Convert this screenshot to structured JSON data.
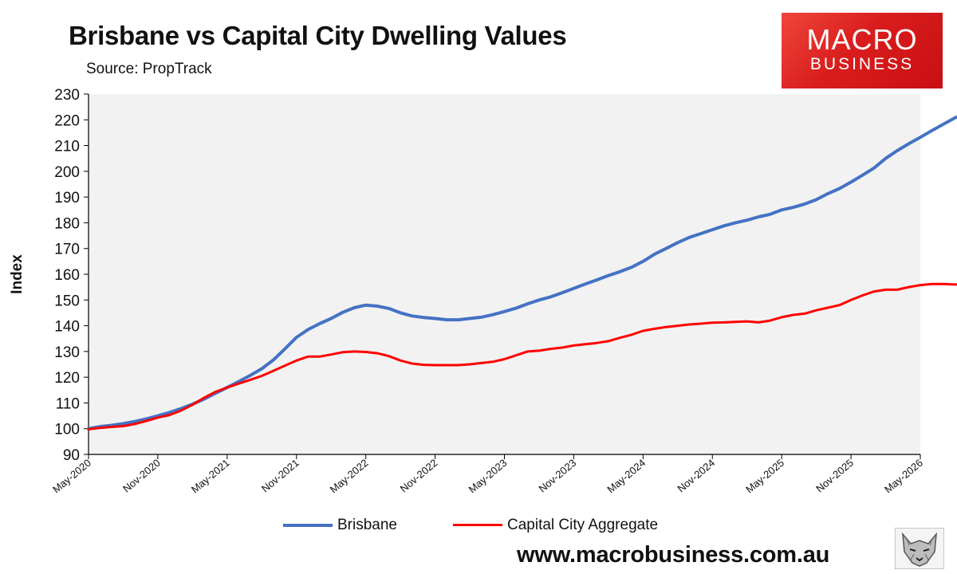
{
  "header": {
    "title": "Brisbane vs Capital City Dwelling Values",
    "subtitle": "Source: PropTrack"
  },
  "logo": {
    "line1": "MACRO",
    "line2": "BUSINESS"
  },
  "footer": {
    "url": "www.macrobusiness.com.au"
  },
  "colors": {
    "brisbane": "#4472C4",
    "capital": "#FF0000",
    "plot_bg": "#F2F2F2",
    "logo_bg": "#D91D1D"
  },
  "chart_data": {
    "type": "line",
    "title": "Brisbane vs Capital City Dwelling Values",
    "ylabel": "Index",
    "xlabel": "",
    "ylim": [
      90,
      230
    ],
    "yticks": [
      90,
      100,
      110,
      120,
      130,
      140,
      150,
      160,
      170,
      180,
      190,
      200,
      210,
      220,
      230
    ],
    "xlim": [
      "May-2020",
      "May-2026"
    ],
    "xticks": [
      "May-2020",
      "Nov-2020",
      "May-2021",
      "Nov-2021",
      "May-2022",
      "Nov-2022",
      "May-2023",
      "Nov-2023",
      "May-2024",
      "Nov-2024",
      "May-2025",
      "Nov-2025",
      "May-2026"
    ],
    "grid": false,
    "legend": "bottom",
    "series": [
      {
        "name": "Brisbane",
        "color": "#4472C4",
        "points": [
          [
            "2020-05",
            100
          ],
          [
            "2020-06",
            100.8
          ],
          [
            "2020-07",
            101.3
          ],
          [
            "2020-08",
            102
          ],
          [
            "2020-09",
            102.8
          ],
          [
            "2020-10",
            103.8
          ],
          [
            "2020-11",
            105
          ],
          [
            "2020-12",
            106.3
          ],
          [
            "2021-01",
            107.8
          ],
          [
            "2021-02",
            109.5
          ],
          [
            "2021-03",
            111.5
          ],
          [
            "2021-04",
            113.8
          ],
          [
            "2021-05",
            116
          ],
          [
            "2021-06",
            118.3
          ],
          [
            "2021-07",
            120.7
          ],
          [
            "2021-08",
            123.3
          ],
          [
            "2021-09",
            126.7
          ],
          [
            "2021-10",
            131
          ],
          [
            "2021-11",
            135.5
          ],
          [
            "2021-12",
            138.5
          ],
          [
            "2022-01",
            140.8
          ],
          [
            "2022-02",
            142.8
          ],
          [
            "2022-03",
            145.2
          ],
          [
            "2022-04",
            147
          ],
          [
            "2022-05",
            148
          ],
          [
            "2022-06",
            147.6
          ],
          [
            "2022-07",
            146.7
          ],
          [
            "2022-08",
            145
          ],
          [
            "2022-09",
            143.8
          ],
          [
            "2022-10",
            143.2
          ],
          [
            "2022-11",
            142.8
          ],
          [
            "2022-12",
            142.3
          ],
          [
            "2023-01",
            142.3
          ],
          [
            "2023-02",
            142.8
          ],
          [
            "2023-03",
            143.3
          ],
          [
            "2023-04",
            144.3
          ],
          [
            "2023-05",
            145.5
          ],
          [
            "2023-06",
            146.8
          ],
          [
            "2023-07",
            148.5
          ],
          [
            "2023-08",
            150
          ],
          [
            "2023-09",
            151.2
          ],
          [
            "2023-10",
            152.8
          ],
          [
            "2023-11",
            154.5
          ],
          [
            "2023-12",
            156.2
          ],
          [
            "2024-01",
            157.8
          ],
          [
            "2024-02",
            159.5
          ],
          [
            "2024-03",
            161
          ],
          [
            "2024-04",
            162.7
          ],
          [
            "2024-05",
            165
          ],
          [
            "2024-06",
            167.8
          ],
          [
            "2024-07",
            170
          ],
          [
            "2024-08",
            172.3
          ],
          [
            "2024-09",
            174.3
          ],
          [
            "2024-10",
            175.8
          ],
          [
            "2024-11",
            177.3
          ],
          [
            "2024-12",
            178.8
          ],
          [
            "2025-01",
            180
          ],
          [
            "2025-02",
            181
          ],
          [
            "2025-03",
            182.3
          ],
          [
            "2025-04",
            183.3
          ],
          [
            "2025-05",
            185
          ],
          [
            "2025-06",
            186
          ],
          [
            "2025-07",
            187.3
          ],
          [
            "2025-08",
            189
          ],
          [
            "2025-09",
            191.3
          ],
          [
            "2025-10",
            193.3
          ],
          [
            "2025-11",
            195.8
          ],
          [
            "2025-12",
            198.5
          ],
          [
            "2026-01",
            201.3
          ],
          [
            "2026-02",
            205
          ],
          [
            "2026-03",
            208
          ],
          [
            "2026-04",
            210.7
          ],
          [
            "2026-05",
            213.2
          ],
          [
            "2026-06",
            215.8
          ],
          [
            "2026-07",
            218.3
          ],
          [
            "2026-08",
            220.8
          ],
          [
            "2026-09",
            222.3
          ],
          [
            "2026-10",
            222.3
          ]
        ]
      },
      {
        "name": "Capital City Aggregate",
        "color": "#FF0000",
        "points": [
          [
            "2020-05",
            99.8
          ],
          [
            "2020-06",
            100.3
          ],
          [
            "2020-07",
            100.7
          ],
          [
            "2020-08",
            101
          ],
          [
            "2020-09",
            101.8
          ],
          [
            "2020-10",
            103
          ],
          [
            "2020-11",
            104.3
          ],
          [
            "2020-12",
            105.3
          ],
          [
            "2021-01",
            107
          ],
          [
            "2021-02",
            109.3
          ],
          [
            "2021-03",
            112
          ],
          [
            "2021-04",
            114.3
          ],
          [
            "2021-05",
            116
          ],
          [
            "2021-06",
            117.5
          ],
          [
            "2021-07",
            119
          ],
          [
            "2021-08",
            120.5
          ],
          [
            "2021-09",
            122.5
          ],
          [
            "2021-10",
            124.5
          ],
          [
            "2021-11",
            126.5
          ],
          [
            "2021-12",
            128
          ],
          [
            "2022-01",
            128
          ],
          [
            "2022-02",
            128.8
          ],
          [
            "2022-03",
            129.7
          ],
          [
            "2022-04",
            130
          ],
          [
            "2022-05",
            129.8
          ],
          [
            "2022-06",
            129.3
          ],
          [
            "2022-07",
            128.2
          ],
          [
            "2022-08",
            126.5
          ],
          [
            "2022-09",
            125.3
          ],
          [
            "2022-10",
            124.8
          ],
          [
            "2022-11",
            124.7
          ],
          [
            "2022-12",
            124.7
          ],
          [
            "2023-01",
            124.7
          ],
          [
            "2023-02",
            125
          ],
          [
            "2023-03",
            125.5
          ],
          [
            "2023-04",
            126
          ],
          [
            "2023-05",
            127
          ],
          [
            "2023-06",
            128.5
          ],
          [
            "2023-07",
            130
          ],
          [
            "2023-08",
            130.3
          ],
          [
            "2023-09",
            131
          ],
          [
            "2023-10",
            131.5
          ],
          [
            "2023-11",
            132.3
          ],
          [
            "2023-12",
            132.8
          ],
          [
            "2024-01",
            133.3
          ],
          [
            "2024-02",
            134
          ],
          [
            "2024-03",
            135.3
          ],
          [
            "2024-04",
            136.5
          ],
          [
            "2024-05",
            138
          ],
          [
            "2024-06",
            138.8
          ],
          [
            "2024-07",
            139.5
          ],
          [
            "2024-08",
            140
          ],
          [
            "2024-09",
            140.5
          ],
          [
            "2024-10",
            140.8
          ],
          [
            "2024-11",
            141.2
          ],
          [
            "2024-12",
            141.3
          ],
          [
            "2025-01",
            141.5
          ],
          [
            "2025-02",
            141.7
          ],
          [
            "2025-03",
            141.3
          ],
          [
            "2025-04",
            142
          ],
          [
            "2025-05",
            143.3
          ],
          [
            "2025-06",
            144.2
          ],
          [
            "2025-07",
            144.7
          ],
          [
            "2025-08",
            146
          ],
          [
            "2025-09",
            147
          ],
          [
            "2025-10",
            148
          ],
          [
            "2025-11",
            150
          ],
          [
            "2025-12",
            151.8
          ],
          [
            "2026-01",
            153.3
          ],
          [
            "2026-02",
            154
          ],
          [
            "2026-03",
            154
          ],
          [
            "2026-04",
            155
          ],
          [
            "2026-05",
            155.8
          ],
          [
            "2026-06",
            156.2
          ],
          [
            "2026-07",
            156.2
          ],
          [
            "2026-08",
            156
          ],
          [
            "2026-09",
            156
          ],
          [
            "2026-10",
            155.8
          ]
        ]
      }
    ]
  }
}
